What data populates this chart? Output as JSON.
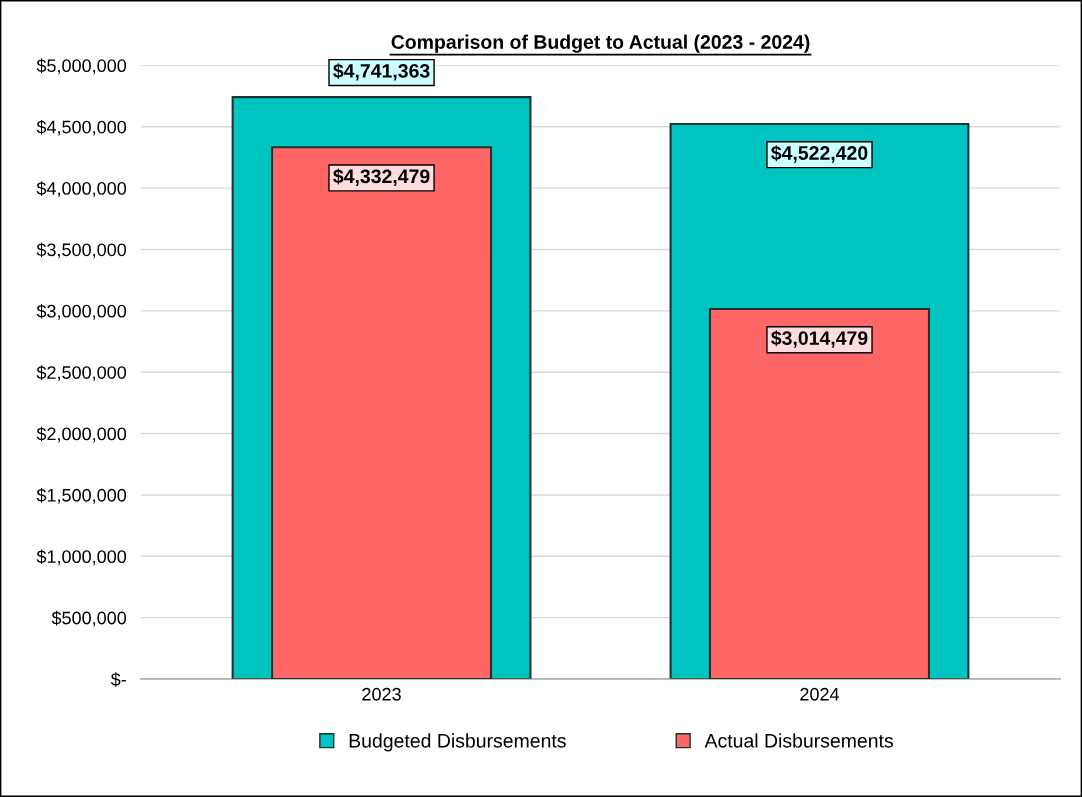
{
  "chart_data": {
    "type": "bar",
    "title": "Comparison of Budget to Actual (2023 - 2024)",
    "categories": [
      "2023",
      "2024"
    ],
    "series": [
      {
        "name": "Budgeted Disbursements",
        "color": "#00c4c0",
        "values": [
          4741363,
          4522420
        ],
        "value_labels": [
          "$4,741,363",
          "$4,522,420"
        ]
      },
      {
        "name": "Actual Disbursements",
        "color": "#ff6666",
        "values": [
          4332479,
          3014479
        ],
        "value_labels": [
          "$4,332,479",
          "$3,014,479"
        ]
      }
    ],
    "ylim": [
      0,
      5000000
    ],
    "yticks": [
      {
        "value": 0,
        "label": "$-"
      },
      {
        "value": 500000,
        "label": "$500,000"
      },
      {
        "value": 1000000,
        "label": "$1,000,000"
      },
      {
        "value": 1500000,
        "label": "$1,500,000"
      },
      {
        "value": 2000000,
        "label": "$2,000,000"
      },
      {
        "value": 2500000,
        "label": "$2,500,000"
      },
      {
        "value": 3000000,
        "label": "$3,000,000"
      },
      {
        "value": 3500000,
        "label": "$3,500,000"
      },
      {
        "value": 4000000,
        "label": "$4,000,000"
      },
      {
        "value": 4500000,
        "label": "$4,500,000"
      },
      {
        "value": 5000000,
        "label": "$5,000,000"
      }
    ],
    "grid": "y",
    "legend": "bottom"
  }
}
